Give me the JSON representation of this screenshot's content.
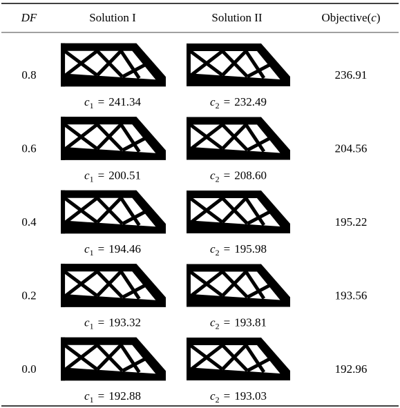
{
  "header": {
    "df": "DF",
    "solution_1": "Solution I",
    "solution_2": "Solution II",
    "objective": {
      "prefix": "Objective(",
      "symbol": "c",
      "suffix": ")"
    }
  },
  "rows": [
    {
      "df": "0.8",
      "solution_1": {
        "symbol": "c",
        "subscript": "1",
        "relation": "=",
        "value": "241.34"
      },
      "solution_2": {
        "symbol": "c",
        "subscript": "2",
        "relation": "=",
        "value": "232.49"
      },
      "objective": "236.91"
    },
    {
      "df": "0.6",
      "solution_1": {
        "symbol": "c",
        "subscript": "1",
        "relation": "=",
        "value": "200.51"
      },
      "solution_2": {
        "symbol": "c",
        "subscript": "2",
        "relation": "=",
        "value": "208.60"
      },
      "objective": "204.56"
    },
    {
      "df": "0.4",
      "solution_1": {
        "symbol": "c",
        "subscript": "1",
        "relation": "=",
        "value": "194.46"
      },
      "solution_2": {
        "symbol": "c",
        "subscript": "2",
        "relation": "=",
        "value": "195.98"
      },
      "objective": "195.22"
    },
    {
      "df": "0.2",
      "solution_1": {
        "symbol": "c",
        "subscript": "1",
        "relation": "=",
        "value": "193.32"
      },
      "solution_2": {
        "symbol": "c",
        "subscript": "2",
        "relation": "=",
        "value": "193.81"
      },
      "objective": "193.56"
    },
    {
      "df": "0.0",
      "solution_1": {
        "symbol": "c",
        "subscript": "1",
        "relation": "=",
        "value": "192.88"
      },
      "solution_2": {
        "symbol": "c",
        "subscript": "2",
        "relation": "=",
        "value": "193.03"
      },
      "objective": "192.96"
    }
  ]
}
